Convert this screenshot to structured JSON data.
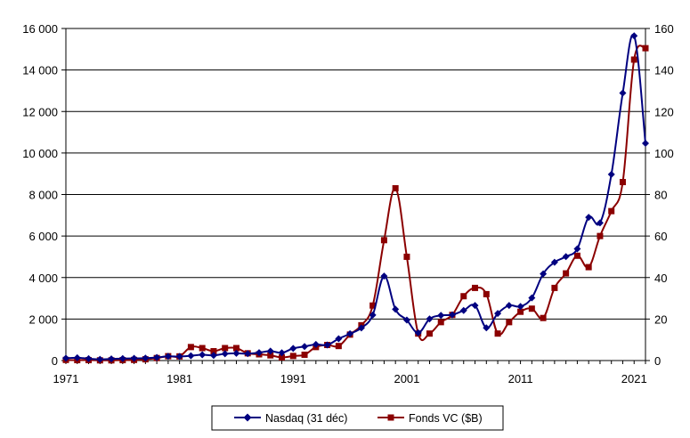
{
  "chart_data": {
    "type": "line",
    "title": "",
    "xlabel": "",
    "ylabel": "",
    "grid": {
      "horizontal": true,
      "vertical": false
    },
    "legend_position": "bottom",
    "x_ticks": [
      1971,
      1981,
      1991,
      2001,
      2011,
      2021
    ],
    "x_range": [
      1971,
      2022
    ],
    "y_left": {
      "range": [
        0,
        16000
      ],
      "ticks": [
        0,
        2000,
        4000,
        6000,
        8000,
        10000,
        12000,
        14000,
        16000
      ],
      "tick_labels": [
        "0",
        "2 000",
        "4 000",
        "6 000",
        "8 000",
        "10 000",
        "12 000",
        "14 000",
        "16 000"
      ]
    },
    "y_right": {
      "range": [
        0,
        160
      ],
      "ticks": [
        0,
        20,
        40,
        60,
        80,
        100,
        120,
        140,
        160
      ],
      "tick_labels": [
        "0",
        "20",
        "40",
        "60",
        "80",
        "100",
        "120",
        "140",
        "160"
      ]
    },
    "series": [
      {
        "name": "Nasdaq (31 déc)",
        "axis": "left",
        "color": "#000080",
        "marker": "diamond",
        "points": [
          [
            1971,
            114
          ],
          [
            1972,
            134
          ],
          [
            1973,
            92
          ],
          [
            1974,
            60
          ],
          [
            1975,
            78
          ],
          [
            1976,
            98
          ],
          [
            1977,
            105
          ],
          [
            1978,
            118
          ],
          [
            1979,
            151
          ],
          [
            1980,
            203
          ],
          [
            1981,
            196
          ],
          [
            1982,
            232
          ],
          [
            1983,
            279
          ],
          [
            1984,
            247
          ],
          [
            1985,
            325
          ],
          [
            1986,
            349
          ],
          [
            1987,
            331
          ],
          [
            1988,
            381
          ],
          [
            1989,
            455
          ],
          [
            1990,
            374
          ],
          [
            1991,
            586
          ],
          [
            1992,
            677
          ],
          [
            1993,
            777
          ],
          [
            1994,
            752
          ],
          [
            1995,
            1052
          ],
          [
            1996,
            1291
          ],
          [
            1997,
            1570
          ],
          [
            1998,
            2193
          ],
          [
            1999,
            4069
          ],
          [
            2000,
            2471
          ],
          [
            2001,
            1950
          ],
          [
            2002,
            1336
          ],
          [
            2003,
            2003
          ],
          [
            2004,
            2175
          ],
          [
            2005,
            2205
          ],
          [
            2006,
            2415
          ],
          [
            2007,
            2652
          ],
          [
            2008,
            1577
          ],
          [
            2009,
            2269
          ],
          [
            2010,
            2653
          ],
          [
            2011,
            2605
          ],
          [
            2012,
            3020
          ],
          [
            2013,
            4177
          ],
          [
            2014,
            4736
          ],
          [
            2015,
            5007
          ],
          [
            2016,
            5383
          ],
          [
            2017,
            6903
          ],
          [
            2018,
            6635
          ],
          [
            2019,
            8973
          ],
          [
            2020,
            12888
          ],
          [
            2021,
            15645
          ],
          [
            2022,
            10466
          ]
        ]
      },
      {
        "name": "Fonds VC ($B)",
        "axis": "right",
        "color": "#8B0000",
        "marker": "square",
        "points": [
          [
            1971,
            0.3
          ],
          [
            1972,
            0.2
          ],
          [
            1973,
            0.2
          ],
          [
            1974,
            0.1
          ],
          [
            1975,
            0.1
          ],
          [
            1976,
            0.2
          ],
          [
            1977,
            0.3
          ],
          [
            1978,
            0.6
          ],
          [
            1979,
            1.2
          ],
          [
            1980,
            2.1
          ],
          [
            1981,
            2.0
          ],
          [
            1982,
            6.5
          ],
          [
            1983,
            6.0
          ],
          [
            1984,
            4.5
          ],
          [
            1985,
            6.0
          ],
          [
            1986,
            6.0
          ],
          [
            1987,
            3.5
          ],
          [
            1988,
            3.0
          ],
          [
            1989,
            2.5
          ],
          [
            1990,
            1.5
          ],
          [
            1991,
            2.2
          ],
          [
            1992,
            2.8
          ],
          [
            1993,
            6.5
          ],
          [
            1994,
            7.5
          ],
          [
            1995,
            7.0
          ],
          [
            1996,
            12.5
          ],
          [
            1997,
            17.0
          ],
          [
            1998,
            26.5
          ],
          [
            1999,
            58.0
          ],
          [
            2000,
            83.0
          ],
          [
            2001,
            50.0
          ],
          [
            2002,
            13.0
          ],
          [
            2003,
            13.0
          ],
          [
            2004,
            18.5
          ],
          [
            2005,
            22.0
          ],
          [
            2006,
            31.0
          ],
          [
            2007,
            35.0
          ],
          [
            2008,
            32.0
          ],
          [
            2009,
            13.0
          ],
          [
            2010,
            18.5
          ],
          [
            2011,
            23.5
          ],
          [
            2012,
            25.0
          ],
          [
            2013,
            20.5
          ],
          [
            2014,
            35.0
          ],
          [
            2015,
            42.0
          ],
          [
            2016,
            50.5
          ],
          [
            2017,
            45.0
          ],
          [
            2018,
            60.0
          ],
          [
            2019,
            72.0
          ],
          [
            2020,
            86.0
          ],
          [
            2021,
            145.0
          ],
          [
            2022,
            150.5
          ]
        ]
      }
    ]
  }
}
